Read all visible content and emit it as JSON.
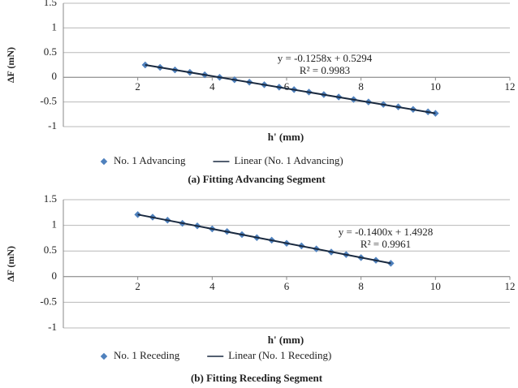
{
  "chart_data": [
    {
      "type": "scatter",
      "caption": "(a) Fitting Advancing Segment",
      "x_label": "h' (mm)",
      "y_label": "ΔF (mN)",
      "annotations": [
        "y = -0.1258x + 0.5294",
        "R² = 0.9983"
      ],
      "xlim": [
        0,
        12
      ],
      "xticks": [
        2,
        4,
        6,
        8,
        10,
        12
      ],
      "ylim": [
        -1,
        1.5
      ],
      "yticks": [
        1.5,
        1,
        0.5,
        0,
        -0.5,
        -1
      ],
      "grid": true,
      "legend": "bottom",
      "series": [
        {
          "name": "No. 1 Advancing",
          "color": "#4f81bd",
          "type": "scatter",
          "x": [
            2.2,
            2.6,
            3.0,
            3.4,
            3.8,
            4.2,
            4.6,
            5.0,
            5.4,
            5.8,
            6.2,
            6.6,
            7.0,
            7.4,
            7.8,
            8.2,
            8.6,
            9.0,
            9.4,
            9.8,
            10.0
          ],
          "values": [
            0.25,
            0.2,
            0.15,
            0.1,
            0.05,
            0.0,
            -0.05,
            -0.1,
            -0.15,
            -0.2,
            -0.25,
            -0.3,
            -0.35,
            -0.4,
            -0.45,
            -0.5,
            -0.55,
            -0.6,
            -0.65,
            -0.7,
            -0.73
          ]
        },
        {
          "name": "Linear (No. 1 Advancing)",
          "color": "#1a2a40",
          "type": "line",
          "x": [
            2.2,
            10.0
          ],
          "values": [
            0.25,
            -0.73
          ]
        }
      ]
    },
    {
      "type": "scatter",
      "caption": "(b) Fitting Receding Segment",
      "x_label": "h' (mm)",
      "y_label": "ΔF (mN)",
      "annotations": [
        "y = -0.1400x + 1.4928",
        "R² = 0.9961"
      ],
      "xlim": [
        0,
        12
      ],
      "xticks": [
        2,
        4,
        6,
        8,
        10,
        12
      ],
      "ylim": [
        -1,
        1.5
      ],
      "yticks": [
        1.5,
        1,
        0.5,
        0,
        -0.5,
        -1
      ],
      "grid": true,
      "legend": "bottom",
      "series": [
        {
          "name": "No. 1 Receding",
          "color": "#4f81bd",
          "type": "scatter",
          "x": [
            2.0,
            2.4,
            2.8,
            3.2,
            3.6,
            4.0,
            4.4,
            4.8,
            5.2,
            5.6,
            6.0,
            6.4,
            6.8,
            7.2,
            7.6,
            8.0,
            8.4,
            8.8
          ],
          "values": [
            1.21,
            1.16,
            1.1,
            1.04,
            0.99,
            0.93,
            0.88,
            0.82,
            0.76,
            0.71,
            0.65,
            0.6,
            0.54,
            0.48,
            0.43,
            0.37,
            0.32,
            0.26
          ]
        },
        {
          "name": "Linear (No. 1 Receding)",
          "color": "#1a2a40",
          "type": "line",
          "x": [
            2.0,
            8.8
          ],
          "values": [
            1.21,
            0.26
          ]
        }
      ]
    }
  ]
}
